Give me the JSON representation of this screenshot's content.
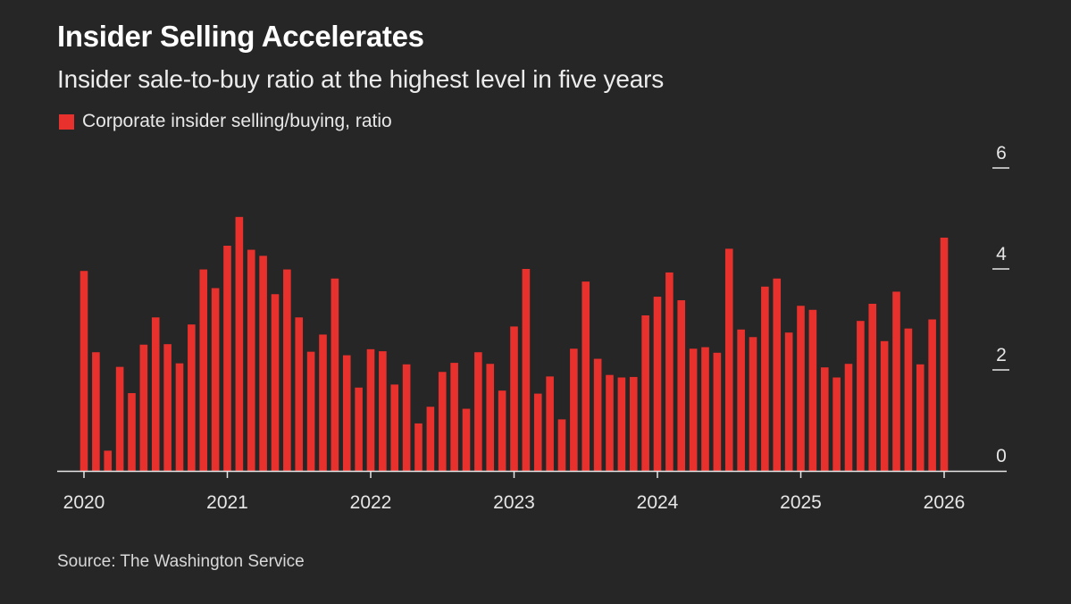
{
  "title": "Insider Selling Accelerates",
  "subtitle": "Insider sale-to-buy ratio at the highest level in five years",
  "source": "Source: The Washington Service",
  "colors": {
    "bar": "#e8302c",
    "background": "#262626",
    "axis": "#e6e6e6"
  },
  "chart_data": {
    "type": "bar",
    "title": "Insider Selling Accelerates",
    "subtitle": "Insider sale-to-buy ratio at the highest level in five years",
    "legend": [
      "Corporate insider selling/buying, ratio"
    ],
    "legend_position": "top-left",
    "xlabel": "",
    "ylabel": "",
    "ylim": [
      0,
      6
    ],
    "y_ticks": [
      0,
      2,
      4,
      6
    ],
    "x_ticks": [
      "2020",
      "2021",
      "2022",
      "2023",
      "2024",
      "2025",
      "2026"
    ],
    "grid": false,
    "start": "2020-01",
    "frequency": "monthly",
    "series": [
      {
        "name": "Corporate insider selling/buying, ratio",
        "values": [
          3.96,
          2.35,
          0.4,
          2.06,
          1.54,
          2.5,
          3.04,
          2.51,
          2.13,
          2.9,
          3.99,
          3.62,
          4.46,
          5.03,
          4.38,
          4.26,
          3.5,
          3.99,
          3.04,
          2.36,
          2.7,
          3.81,
          2.29,
          1.65,
          2.41,
          2.37,
          1.71,
          2.11,
          0.94,
          1.27,
          1.96,
          2.14,
          1.23,
          2.35,
          2.12,
          1.59,
          2.86,
          4.0,
          1.53,
          1.87,
          1.02,
          2.42,
          3.75,
          2.22,
          1.9,
          1.85,
          1.86,
          3.08,
          3.45,
          3.93,
          3.38,
          2.42,
          2.45,
          2.34,
          4.4,
          2.8,
          2.65,
          3.65,
          3.81,
          2.74,
          3.27,
          3.19,
          2.05,
          1.85,
          2.12,
          2.97,
          3.31,
          2.57,
          3.55,
          2.82,
          2.11,
          3.0,
          4.62
        ]
      }
    ]
  }
}
